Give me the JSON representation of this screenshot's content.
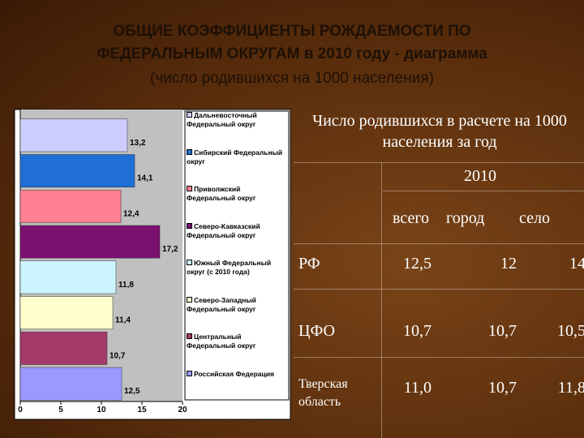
{
  "title": {
    "line1": "ОБЩИЕ КОЭФФИЦИЕНТЫ РОЖДАЕМОСТИ ПО",
    "line2": "ФЕДЕРАЛЬНЫМ ОКРУГАМ в 2010 году - диаграмма",
    "line3": "(число родившихся на 1000 населения)"
  },
  "chart_data": {
    "type": "hbar",
    "categories": [
      "Дальневосточный Федеральный округ",
      "Сибирский Федеральный округ",
      "Приволжский Федеральный округ",
      "Северо-Кавказский Федеральный округ",
      "Южный Федеральный округ (с 2010 года)",
      "Северо-Западный Федеральный округ",
      "Центральный Федеральный округ",
      "Российская Федерация"
    ],
    "values": [
      13.2,
      14.1,
      12.4,
      17.2,
      11.8,
      11.4,
      10.7,
      12.5
    ],
    "value_labels": [
      "13,2",
      "14,1",
      "12,4",
      "17,2",
      "11,8",
      "11,4",
      "10,7",
      "12,5"
    ],
    "colors": [
      "#ccccff",
      "#1f6fd6",
      "#ff8090",
      "#7a1070",
      "#ccf4ff",
      "#ffffcc",
      "#a33a6a",
      "#9999ff"
    ],
    "xlim": [
      0,
      20
    ],
    "xticks": [
      0,
      5,
      10,
      15,
      20
    ],
    "grid": false,
    "legend": "right"
  },
  "table": {
    "header": "Число родившихся в расчете на 1000 населения за год",
    "year": "2010",
    "columns": [
      "всего",
      "город",
      "село"
    ],
    "rows": [
      [
        "РФ",
        "12,5",
        "12",
        "14"
      ],
      [
        "ЦФО",
        "10,7",
        "10,7",
        "10,5"
      ],
      [
        "Тверская область",
        "11,0",
        "10,7",
        "11,8"
      ]
    ]
  }
}
